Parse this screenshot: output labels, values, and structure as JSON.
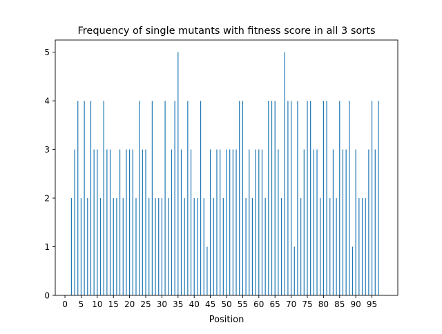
{
  "chart_data": {
    "type": "bar",
    "title": "Frequency of single mutants with fitness score in all 3 sorts",
    "xlabel": "Position",
    "ylabel": "",
    "xlim": [
      -3,
      103
    ],
    "ylim": [
      0,
      5.25
    ],
    "xticks": [
      0,
      5,
      10,
      15,
      20,
      25,
      30,
      35,
      40,
      45,
      50,
      55,
      60,
      65,
      70,
      75,
      80,
      85,
      90,
      95
    ],
    "yticks": [
      0,
      1,
      2,
      3,
      4,
      5
    ],
    "grid": false,
    "legend": "none",
    "bar_color": "#1f77b4",
    "x": [
      2,
      3,
      4,
      5,
      6,
      7,
      8,
      9,
      10,
      11,
      12,
      13,
      14,
      15,
      16,
      17,
      18,
      19,
      20,
      21,
      22,
      23,
      24,
      25,
      26,
      27,
      28,
      29,
      30,
      31,
      32,
      33,
      34,
      35,
      36,
      37,
      38,
      39,
      40,
      41,
      42,
      43,
      44,
      45,
      46,
      47,
      48,
      49,
      50,
      51,
      52,
      53,
      54,
      55,
      56,
      57,
      58,
      59,
      60,
      61,
      62,
      63,
      64,
      65,
      66,
      67,
      68,
      69,
      70,
      71,
      72,
      73,
      74,
      75,
      76,
      77,
      78,
      79,
      80,
      81,
      82,
      83,
      84,
      85,
      86,
      87,
      88,
      89,
      90,
      91,
      92,
      93,
      94,
      95,
      96,
      97
    ],
    "values": [
      2,
      3,
      4,
      2,
      4,
      2,
      4,
      3,
      3,
      2,
      4,
      3,
      3,
      2,
      2,
      3,
      2,
      3,
      3,
      3,
      2,
      4,
      3,
      3,
      2,
      4,
      2,
      2,
      2,
      4,
      2,
      3,
      4,
      5,
      3,
      2,
      4,
      3,
      2,
      2,
      4,
      2,
      1,
      3,
      2,
      3,
      3,
      2,
      3,
      3,
      3,
      3,
      4,
      4,
      2,
      3,
      2,
      3,
      3,
      3,
      2,
      4,
      4,
      4,
      3,
      2,
      5,
      4,
      4,
      1,
      4,
      2,
      3,
      4,
      4,
      3,
      3,
      2,
      4,
      4,
      2,
      3,
      2,
      4,
      3,
      3,
      4,
      1,
      3,
      2,
      2,
      2,
      3,
      4,
      3,
      4
    ]
  }
}
